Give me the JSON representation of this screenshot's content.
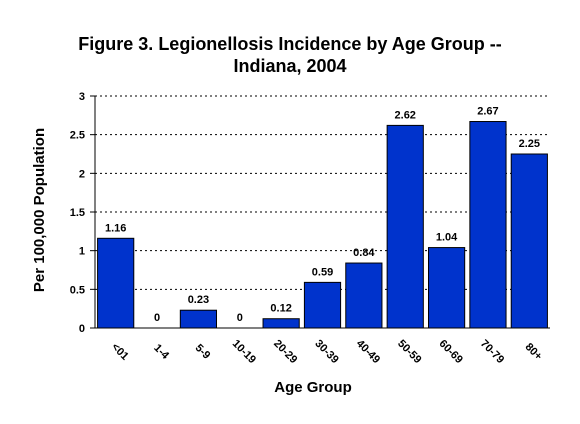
{
  "chart_data": {
    "type": "bar",
    "title_line1": "Figure 3.  Legionellosis Incidence by Age Group --",
    "title_line2": "Indiana, 2004",
    "xlabel": "Age Group",
    "ylabel": "Per 100,000 Population",
    "categories": [
      "<01",
      "1-4",
      "5-9",
      "10-19",
      "20-29",
      "30-39",
      "40-49",
      "50-59",
      "60-69",
      "70-79",
      "80+"
    ],
    "values": [
      1.16,
      0,
      0.23,
      0,
      0.12,
      0.59,
      0.84,
      2.62,
      1.04,
      2.67,
      2.25
    ],
    "value_labels": [
      "1.16",
      "0",
      "0.23",
      "0",
      "0.12",
      "0.59",
      "0.84",
      "2.62",
      "1.04",
      "2.67",
      "2.25"
    ],
    "ylim": [
      0,
      3
    ],
    "yticks": [
      "0",
      "0.5",
      "1",
      "1.5",
      "2",
      "2.5",
      "3"
    ],
    "grid": true,
    "bar_color": "#0033cc"
  }
}
